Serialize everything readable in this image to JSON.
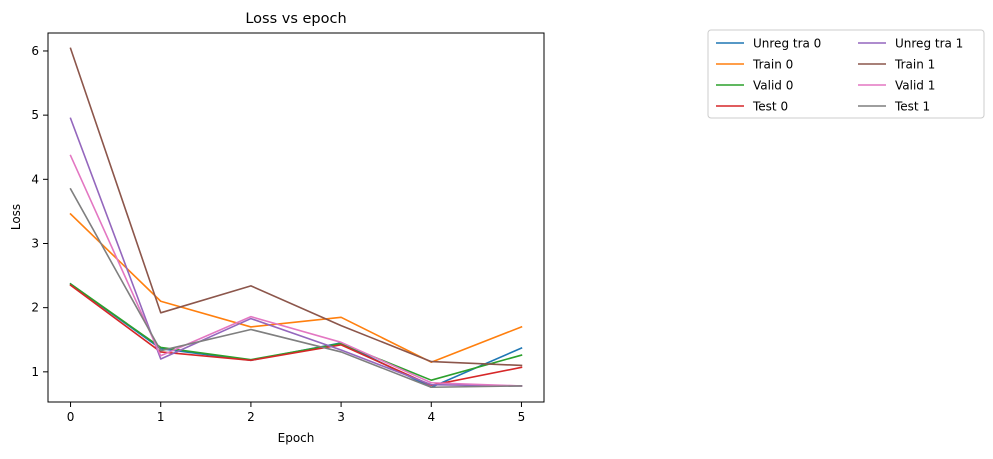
{
  "chart_data": {
    "type": "line",
    "title": "Loss vs epoch",
    "xlabel": "Epoch",
    "ylabel": "Loss",
    "x": [
      0,
      1,
      2,
      3,
      4,
      5
    ],
    "xticks": [
      "0",
      "1",
      "2",
      "3",
      "4",
      "5"
    ],
    "yticks": [
      "1",
      "2",
      "3",
      "4",
      "5",
      "6"
    ],
    "xlim": [
      -0.25,
      5.25
    ],
    "ylim": [
      0.53,
      6.28
    ],
    "grid": false,
    "legend_position": "outside-top-right",
    "legend_columns": 2,
    "series": [
      {
        "name": "Unreg tra 0",
        "color": "#1f77b4",
        "values": [
          2.37,
          1.36,
          1.18,
          1.45,
          0.76,
          1.37
        ]
      },
      {
        "name": "Train 0",
        "color": "#ff7f0e",
        "values": [
          3.46,
          2.1,
          1.7,
          1.85,
          1.15,
          1.7
        ]
      },
      {
        "name": "Valid 0",
        "color": "#2ca02c",
        "values": [
          2.37,
          1.38,
          1.19,
          1.44,
          0.87,
          1.26
        ]
      },
      {
        "name": "Test 0",
        "color": "#d62728",
        "values": [
          2.35,
          1.31,
          1.18,
          1.42,
          0.79,
          1.07
        ]
      },
      {
        "name": "Unreg tra 1",
        "color": "#9467bd",
        "values": [
          4.95,
          1.2,
          1.83,
          1.34,
          0.8,
          0.78
        ]
      },
      {
        "name": "Train 1",
        "color": "#8c564b",
        "values": [
          6.04,
          1.92,
          2.34,
          1.72,
          1.16,
          1.1
        ]
      },
      {
        "name": "Valid 1",
        "color": "#e377c2",
        "values": [
          4.37,
          1.25,
          1.86,
          1.46,
          0.83,
          0.78
        ]
      },
      {
        "name": "Test 1",
        "color": "#7f7f7f",
        "values": [
          3.85,
          1.33,
          1.66,
          1.31,
          0.76,
          0.78
        ]
      }
    ]
  }
}
